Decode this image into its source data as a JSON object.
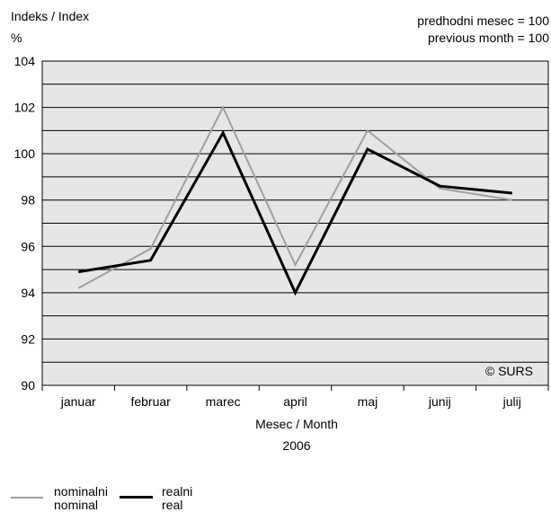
{
  "header": {
    "ylabel_line1": "Indeks / Index",
    "ylabel_line2": "%",
    "note_line1": "predhodni mesec = 100",
    "note_line2": "previous month = 100"
  },
  "copyright": "© SURS",
  "xlabel": "Mesec / Month",
  "year": "2006",
  "legend": [
    {
      "line1": "nominalni",
      "line2": "nominal"
    },
    {
      "line1": "realni",
      "line2": "real"
    }
  ],
  "chart_data": {
    "type": "line",
    "categories": [
      "januar",
      "februar",
      "marec",
      "april",
      "maj",
      "junij",
      "julij"
    ],
    "ylim": [
      90,
      104
    ],
    "ytick_labels": [
      90,
      92,
      94,
      96,
      98,
      100,
      102,
      104
    ],
    "grid": true,
    "series": [
      {
        "name": "nominalni / nominal",
        "color": "#a0a0a0",
        "values": [
          94.2,
          95.9,
          102.0,
          95.2,
          101.0,
          98.5,
          98.0
        ]
      },
      {
        "name": "realni / real",
        "color": "#000000",
        "values": [
          94.9,
          95.4,
          100.9,
          94.0,
          100.2,
          98.6,
          98.3
        ]
      }
    ]
  }
}
